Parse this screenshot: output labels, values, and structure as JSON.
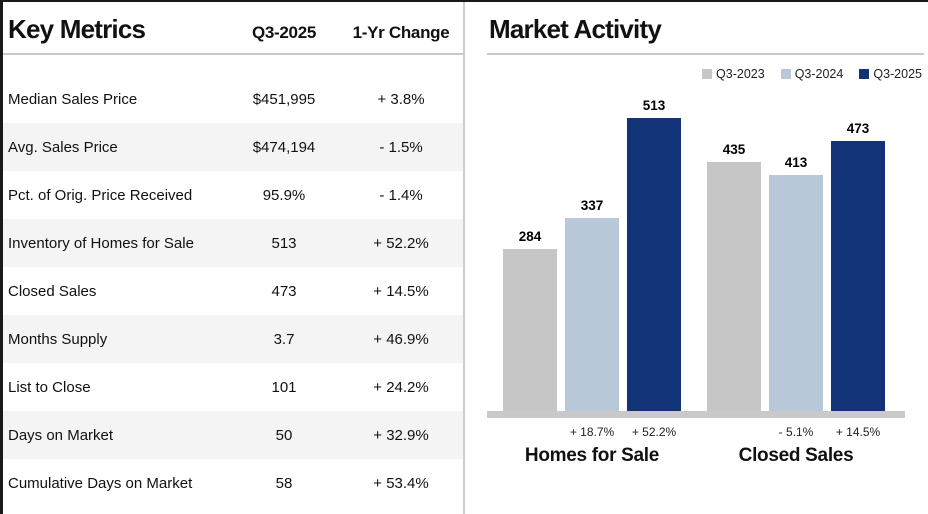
{
  "table": {
    "title": "Key Metrics",
    "col_period": "Q3-2025",
    "col_change": "1-Yr Change",
    "rows": [
      {
        "label": "Median Sales Price",
        "value": "$451,995",
        "change": "+ 3.8%"
      },
      {
        "label": "Avg. Sales Price",
        "value": "$474,194",
        "change": "- 1.5%"
      },
      {
        "label": "Pct. of Orig. Price Received",
        "value": "95.9%",
        "change": "- 1.4%"
      },
      {
        "label": "Inventory of Homes for Sale",
        "value": "513",
        "change": "+ 52.2%"
      },
      {
        "label": "Closed Sales",
        "value": "473",
        "change": "+ 14.5%"
      },
      {
        "label": "Months Supply",
        "value": "3.7",
        "change": "+ 46.9%"
      },
      {
        "label": "List to Close",
        "value": "101",
        "change": "+ 24.2%"
      },
      {
        "label": "Days on Market",
        "value": "50",
        "change": "+ 32.9%"
      },
      {
        "label": "Cumulative Days on Market",
        "value": "58",
        "change": "+ 53.4%"
      }
    ]
  },
  "chart_data": {
    "type": "bar",
    "title": "Market Activity",
    "categories": [
      "Homes for Sale",
      "Closed Sales"
    ],
    "series": [
      {
        "name": "Q3-2023",
        "color": "#c6c6c6",
        "values": [
          284,
          435
        ]
      },
      {
        "name": "Q3-2024",
        "color": "#b9c8d8",
        "values": [
          337,
          413
        ]
      },
      {
        "name": "Q3-2025",
        "color": "#123377",
        "values": [
          513,
          473
        ]
      }
    ],
    "change_labels": [
      [
        "",
        "+ 18.7%",
        "+ 52.2%"
      ],
      [
        "",
        "- 5.1%",
        "+ 14.5%"
      ]
    ],
    "ylim": [
      0,
      560
    ],
    "grid": false,
    "legend_position": "top-right",
    "axis_color": "#c9c9c9"
  }
}
